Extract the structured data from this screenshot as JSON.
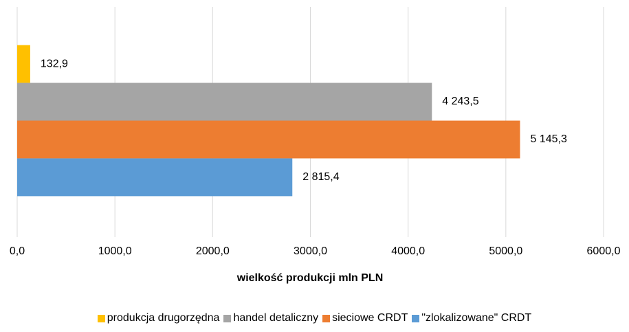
{
  "chart_data": {
    "type": "bar",
    "orientation": "horizontal",
    "x_label": "wielkość produkcji mln PLN",
    "categories": [
      null
    ],
    "series": [
      {
        "name": "produkcja drugorzędna",
        "color": "#FFC000",
        "values": [
          132.9
        ],
        "value_labels": [
          "132,9"
        ]
      },
      {
        "name": "handel detaliczny",
        "color": "#A5A5A5",
        "values": [
          4243.5
        ],
        "value_labels": [
          "4 243,5"
        ]
      },
      {
        "name": "sieciowe CRDT",
        "color": "#ED7D31",
        "values": [
          5145.3
        ],
        "value_labels": [
          "5 145,3"
        ]
      },
      {
        "name": "\"zlokalizowane\" CRDT",
        "color": "#5B9BD5",
        "values": [
          2815.4
        ],
        "value_labels": [
          "2 815,4"
        ]
      }
    ],
    "xlim": [
      0,
      6000
    ],
    "xticks": [
      {
        "value": 0,
        "label": "0,0"
      },
      {
        "value": 1000,
        "label": "1000,0"
      },
      {
        "value": 2000,
        "label": "2000,0"
      },
      {
        "value": 3000,
        "label": "3000,0"
      },
      {
        "value": 4000,
        "label": "4000,0"
      },
      {
        "value": 5000,
        "label": "5000,0"
      },
      {
        "value": 6000,
        "label": "6000,0"
      }
    ],
    "grid": true,
    "legend": "bottom"
  }
}
